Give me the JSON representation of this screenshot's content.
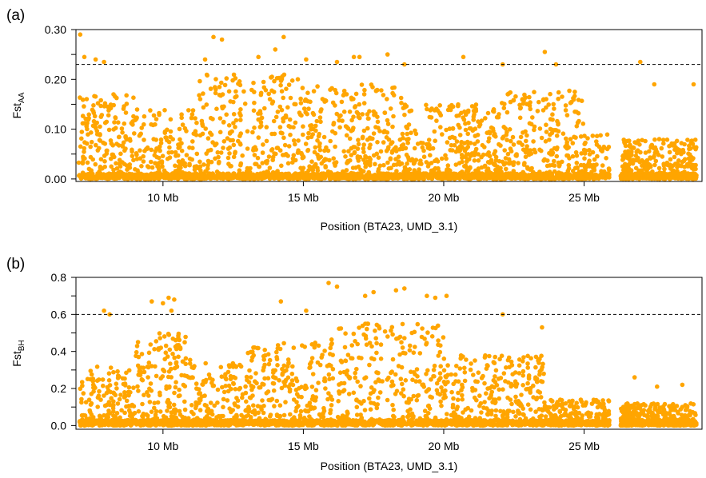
{
  "chart_data": [
    {
      "type": "scatter",
      "panel_label": "(a)",
      "xlabel": "Position (BTA23, UMD_3.1)",
      "ylabel_main": "Fst",
      "ylabel_sub": "AA",
      "x_ticks": [
        10,
        15,
        20,
        25
      ],
      "x_tick_labels": [
        "10 Mb",
        "15 Mb",
        "20 Mb",
        "25 Mb"
      ],
      "y_ticks": [
        0.0,
        0.1,
        0.2,
        0.3
      ],
      "y_tick_labels": [
        "0.00",
        "0.10",
        "0.20",
        "0.30"
      ],
      "xlim": [
        6.9,
        29.2
      ],
      "ylim": [
        -0.005,
        0.3
      ],
      "threshold": 0.23,
      "point_color": "#FFA500",
      "x_range": [
        7.0,
        29.0
      ],
      "n_points": 3400,
      "series": [
        {
          "peaks": [
            [
              7.05,
              0.29
            ],
            [
              7.2,
              0.245
            ],
            [
              7.6,
              0.24
            ],
            [
              7.9,
              0.235
            ],
            [
              11.8,
              0.285
            ],
            [
              12.1,
              0.28
            ],
            [
              11.5,
              0.24
            ],
            [
              13.4,
              0.245
            ],
            [
              14.3,
              0.285
            ],
            [
              14.0,
              0.26
            ],
            [
              15.1,
              0.24
            ],
            [
              16.2,
              0.235
            ],
            [
              16.8,
              0.245
            ],
            [
              17.0,
              0.245
            ],
            [
              18.0,
              0.25
            ],
            [
              18.6,
              0.23
            ],
            [
              20.7,
              0.245
            ],
            [
              22.1,
              0.23
            ],
            [
              23.6,
              0.255
            ],
            [
              24.0,
              0.23
            ],
            [
              27.0,
              0.235
            ],
            [
              27.5,
              0.19
            ],
            [
              28.9,
              0.19
            ]
          ]
        }
      ]
    },
    {
      "type": "scatter",
      "panel_label": "(b)",
      "xlabel": "Position (BTA23, UMD_3.1)",
      "ylabel_main": "Fst",
      "ylabel_sub": "BH",
      "x_ticks": [
        10,
        15,
        20,
        25
      ],
      "x_tick_labels": [
        "10 Mb",
        "15 Mb",
        "20 Mb",
        "25 Mb"
      ],
      "y_ticks": [
        0.0,
        0.2,
        0.4,
        0.6,
        0.8
      ],
      "y_tick_labels": [
        "0.0",
        "0.2",
        "0.4",
        "0.6",
        "0.8"
      ],
      "xlim": [
        6.9,
        29.2
      ],
      "ylim": [
        -0.02,
        0.8
      ],
      "threshold": 0.6,
      "point_color": "#FFA500",
      "x_range": [
        7.0,
        29.0
      ],
      "n_points": 3400,
      "series": [
        {
          "peaks": [
            [
              7.9,
              0.62
            ],
            [
              8.1,
              0.6
            ],
            [
              9.6,
              0.67
            ],
            [
              10.0,
              0.66
            ],
            [
              10.2,
              0.69
            ],
            [
              10.4,
              0.68
            ],
            [
              10.3,
              0.62
            ],
            [
              14.2,
              0.67
            ],
            [
              15.1,
              0.62
            ],
            [
              15.9,
              0.77
            ],
            [
              16.2,
              0.75
            ],
            [
              17.2,
              0.7
            ],
            [
              17.5,
              0.72
            ],
            [
              18.3,
              0.73
            ],
            [
              18.6,
              0.74
            ],
            [
              19.4,
              0.7
            ],
            [
              19.7,
              0.69
            ],
            [
              20.1,
              0.7
            ],
            [
              22.1,
              0.6
            ],
            [
              23.5,
              0.53
            ],
            [
              26.8,
              0.26
            ],
            [
              27.6,
              0.21
            ],
            [
              28.5,
              0.22
            ]
          ]
        }
      ]
    }
  ]
}
